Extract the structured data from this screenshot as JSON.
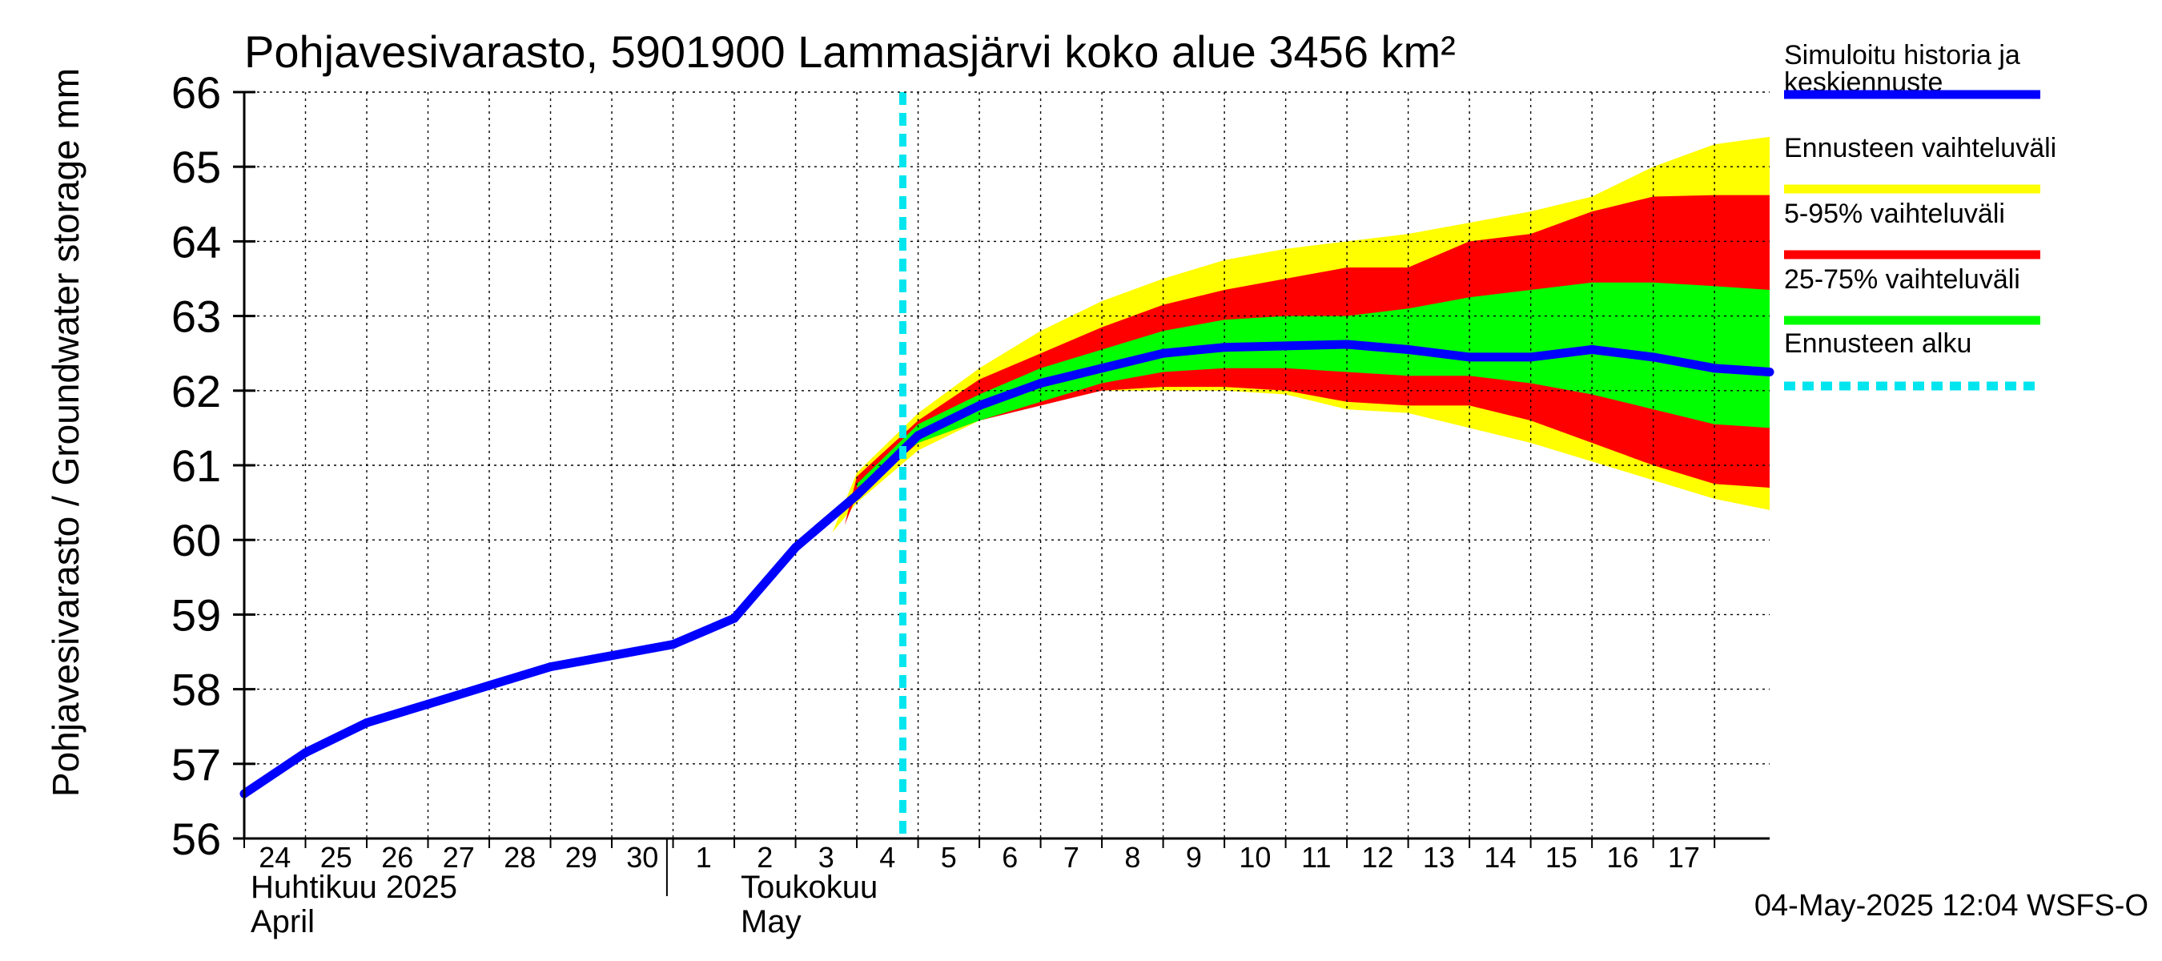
{
  "chart_data": {
    "type": "area",
    "title": "Pohjavesivarasto, 5901900 Lammasjärvi koko alue 3456 km²",
    "ylabel": "Pohjavesivarasto / Groundwater storage   mm",
    "ylim": [
      56,
      66
    ],
    "yticks": [
      56,
      57,
      58,
      59,
      60,
      61,
      62,
      63,
      64,
      65,
      66
    ],
    "grid": true,
    "x_day_labels": [
      "24",
      "25",
      "26",
      "27",
      "28",
      "29",
      "30",
      "1",
      "2",
      "3",
      "4",
      "5",
      "6",
      "7",
      "8",
      "9",
      "10",
      "11",
      "12",
      "13",
      "14",
      "15",
      "16",
      "17"
    ],
    "x_day_start": 0,
    "x_day_end": 24.9,
    "month_labels": [
      {
        "day_index": 0,
        "fi": "Huhtikuu  2025",
        "en": "April"
      },
      {
        "day_index": 8,
        "fi": "Toukokuu",
        "en": "May"
      }
    ],
    "forecast_start": 10.75,
    "series": [
      {
        "name": "Simuloitu historia ja keskiennuste",
        "role": "median",
        "color": "#0000ff",
        "x": [
          0,
          1,
          2,
          3,
          4,
          5,
          6,
          7,
          8,
          9,
          10,
          11,
          12,
          13,
          14,
          15,
          16,
          17,
          18,
          19,
          20,
          21,
          22,
          23,
          24,
          24.9
        ],
        "values": [
          56.6,
          57.15,
          57.55,
          57.8,
          58.05,
          58.3,
          58.45,
          58.6,
          58.95,
          59.9,
          60.6,
          61.4,
          61.8,
          62.1,
          62.3,
          62.5,
          62.58,
          62.6,
          62.62,
          62.55,
          62.45,
          62.45,
          62.55,
          62.45,
          62.3,
          62.25
        ]
      }
    ],
    "bands": [
      {
        "name": "Ennusteen vaihteluväli",
        "color": "#ffff00",
        "x": [
          9.6,
          10,
          11,
          12,
          13,
          14,
          15,
          16,
          17,
          18,
          19,
          20,
          21,
          22,
          23,
          24,
          24.9
        ],
        "upper": [
          60.1,
          60.9,
          61.7,
          62.3,
          62.8,
          63.2,
          63.5,
          63.75,
          63.9,
          64.0,
          64.1,
          64.25,
          64.4,
          64.6,
          65.0,
          65.3,
          65.4
        ],
        "lower": [
          60.1,
          60.5,
          61.2,
          61.6,
          61.85,
          62.0,
          62.0,
          62.0,
          61.95,
          61.75,
          61.7,
          61.5,
          61.3,
          61.05,
          60.8,
          60.55,
          60.4
        ]
      },
      {
        "name": "5-95% vaihteluväli",
        "color": "#ff0000",
        "x": [
          9.8,
          10,
          11,
          12,
          13,
          14,
          15,
          16,
          17,
          18,
          19,
          20,
          21,
          22,
          23,
          24,
          24.9
        ],
        "upper": [
          60.2,
          60.85,
          61.6,
          62.15,
          62.5,
          62.85,
          63.15,
          63.35,
          63.5,
          63.65,
          63.65,
          64.0,
          64.1,
          64.4,
          64.6,
          64.62,
          64.62
        ],
        "lower": [
          60.2,
          60.6,
          61.3,
          61.6,
          61.8,
          62.0,
          62.05,
          62.05,
          62.0,
          61.85,
          61.8,
          61.8,
          61.6,
          61.3,
          61.0,
          60.75,
          60.7
        ]
      },
      {
        "name": "25-75% vaihteluväli",
        "color": "#00ff00",
        "x": [
          10,
          11,
          12,
          13,
          14,
          15,
          16,
          17,
          18,
          19,
          20,
          21,
          22,
          23,
          24,
          24.9
        ],
        "upper": [
          60.75,
          61.55,
          61.95,
          62.3,
          62.55,
          62.8,
          62.95,
          63.0,
          63.0,
          63.1,
          63.25,
          63.35,
          63.45,
          63.45,
          63.4,
          63.35
        ],
        "lower": [
          60.7,
          61.3,
          61.6,
          61.85,
          62.1,
          62.25,
          62.3,
          62.3,
          62.25,
          62.2,
          62.2,
          62.1,
          61.95,
          61.75,
          61.55,
          61.5
        ]
      }
    ],
    "legend": [
      {
        "label": "Simuloitu historia ja keskiennuste",
        "color": "#0000ff",
        "style": "solid"
      },
      {
        "label": "Ennusteen vaihteluväli",
        "color": "#ffff00",
        "style": "solid"
      },
      {
        "label": "5-95% vaihteluväli",
        "color": "#ff0000",
        "style": "solid"
      },
      {
        "label": "25-75% vaihteluväli",
        "color": "#00ff00",
        "style": "solid"
      },
      {
        "label": "Ennusteen alku",
        "color": "#00e5ee",
        "style": "dashed"
      }
    ],
    "legend_position": "right",
    "footer": "04-May-2025 12:04 WSFS-O"
  }
}
